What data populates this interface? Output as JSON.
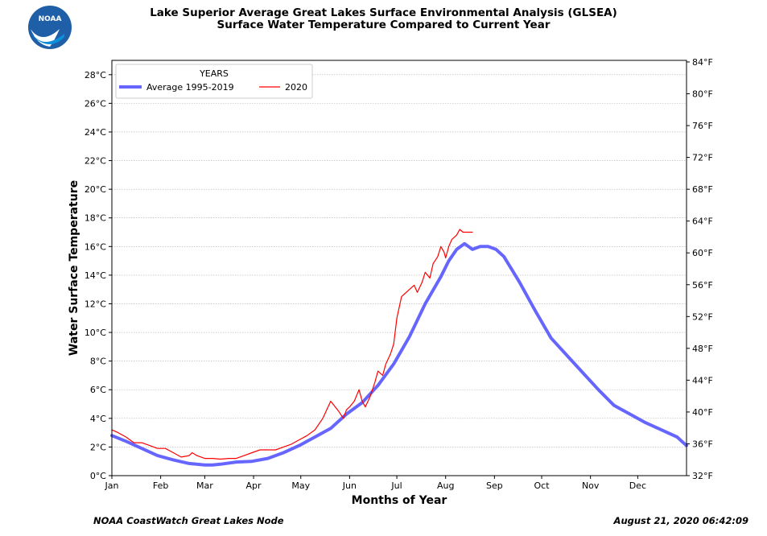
{
  "header": {
    "logo_text": "NOAA",
    "title_line1": "Lake Superior Average Great Lakes Surface Environmental Analysis (GLSEA)",
    "title_line2": "Surface Water Temperature Compared to Current Year"
  },
  "footer": {
    "source": "NOAA CoastWatch Great Lakes Node",
    "timestamp": "August 21, 2020 06:42:09"
  },
  "colors": {
    "average": "#6666ff",
    "current": "#ff0000",
    "grid": "#b0b0b0"
  },
  "chart_data": {
    "type": "line",
    "title": "Lake Superior Average Great Lakes Surface Environmental Analysis (GLSEA) Surface Water Temperature Compared to Current Year",
    "xlabel": "Months of Year",
    "ylabel": "Water Surface Temperature",
    "xlim": [
      1,
      366
    ],
    "ylim": [
      0,
      29
    ],
    "grid": true,
    "legend": {
      "title": "YEARS",
      "location": "top-left"
    },
    "month_ticks": [
      {
        "day": 1,
        "label": "Jan"
      },
      {
        "day": 32,
        "label": "Feb"
      },
      {
        "day": 60,
        "label": "Mar"
      },
      {
        "day": 91,
        "label": "Apr"
      },
      {
        "day": 121,
        "label": "May"
      },
      {
        "day": 152,
        "label": "Jun"
      },
      {
        "day": 182,
        "label": "Jul"
      },
      {
        "day": 213,
        "label": "Aug"
      },
      {
        "day": 244,
        "label": "Sep"
      },
      {
        "day": 274,
        "label": "Oct"
      },
      {
        "day": 305,
        "label": "Nov"
      },
      {
        "day": 335,
        "label": "Dec"
      }
    ],
    "y_ticks_c": [
      {
        "value": 0,
        "label": "0°C"
      },
      {
        "value": 2,
        "label": "2°C"
      },
      {
        "value": 4,
        "label": "4°C"
      },
      {
        "value": 6,
        "label": "6°C"
      },
      {
        "value": 8,
        "label": "8°C"
      },
      {
        "value": 10,
        "label": "10°C"
      },
      {
        "value": 12,
        "label": "12°C"
      },
      {
        "value": 14,
        "label": "14°C"
      },
      {
        "value": 16,
        "label": "16°C"
      },
      {
        "value": 18,
        "label": "18°C"
      },
      {
        "value": 20,
        "label": "20°C"
      },
      {
        "value": 22,
        "label": "22°C"
      },
      {
        "value": 24,
        "label": "24°C"
      },
      {
        "value": 26,
        "label": "26°C"
      },
      {
        "value": 28,
        "label": "28°C"
      }
    ],
    "y_ticks_f": [
      {
        "value": 32,
        "label": "32°F"
      },
      {
        "value": 36,
        "label": "36°F"
      },
      {
        "value": 40,
        "label": "40°F"
      },
      {
        "value": 44,
        "label": "44°F"
      },
      {
        "value": 48,
        "label": "48°F"
      },
      {
        "value": 52,
        "label": "52°F"
      },
      {
        "value": 56,
        "label": "56°F"
      },
      {
        "value": 60,
        "label": "60°F"
      },
      {
        "value": 64,
        "label": "64°F"
      },
      {
        "value": 68,
        "label": "68°F"
      },
      {
        "value": 72,
        "label": "72°F"
      },
      {
        "value": 76,
        "label": "76°F"
      },
      {
        "value": 80,
        "label": "80°F"
      },
      {
        "value": 84,
        "label": "84°F"
      }
    ],
    "series": [
      {
        "name": "Average 1995-2019",
        "x": [
          1,
          10,
          20,
          30,
          40,
          50,
          60,
          65,
          70,
          80,
          90,
          100,
          110,
          120,
          130,
          140,
          150,
          160,
          170,
          180,
          190,
          200,
          210,
          215,
          220,
          225,
          230,
          235,
          240,
          245,
          250,
          260,
          270,
          280,
          290,
          300,
          310,
          320,
          330,
          340,
          350,
          360,
          363,
          366
        ],
        "y": [
          2.8,
          2.4,
          1.9,
          1.4,
          1.1,
          0.85,
          0.75,
          0.75,
          0.8,
          0.95,
          1.0,
          1.2,
          1.6,
          2.1,
          2.7,
          3.3,
          4.3,
          5.1,
          6.3,
          7.8,
          9.7,
          12.0,
          13.9,
          15.0,
          15.8,
          16.2,
          15.8,
          16.0,
          16.0,
          15.8,
          15.3,
          13.5,
          11.5,
          9.6,
          8.4,
          7.2,
          6.0,
          4.9,
          4.3,
          3.7,
          3.2,
          2.7,
          2.4,
          2.1
        ]
      },
      {
        "name": "2020",
        "x": [
          1,
          5,
          10,
          15,
          20,
          25,
          30,
          35,
          40,
          45,
          50,
          52,
          55,
          60,
          65,
          70,
          75,
          80,
          85,
          90,
          95,
          100,
          105,
          110,
          115,
          120,
          125,
          130,
          135,
          140,
          145,
          148,
          150,
          152,
          155,
          158,
          160,
          162,
          165,
          168,
          170,
          173,
          175,
          178,
          180,
          182,
          185,
          190,
          193,
          195,
          198,
          200,
          203,
          205,
          208,
          210,
          212,
          213,
          215,
          217,
          220,
          222,
          224,
          226,
          228,
          230
        ],
        "y": [
          3.2,
          3.0,
          2.7,
          2.3,
          2.3,
          2.1,
          1.9,
          1.9,
          1.6,
          1.3,
          1.4,
          1.6,
          1.4,
          1.2,
          1.2,
          1.15,
          1.2,
          1.2,
          1.4,
          1.6,
          1.8,
          1.8,
          1.8,
          2.0,
          2.2,
          2.5,
          2.8,
          3.2,
          4.0,
          5.2,
          4.5,
          4.0,
          4.6,
          4.8,
          5.2,
          6.0,
          5.2,
          4.8,
          5.5,
          6.5,
          7.3,
          7.0,
          7.8,
          8.5,
          9.2,
          11.0,
          12.5,
          13.0,
          13.3,
          12.8,
          13.5,
          14.2,
          13.8,
          14.8,
          15.3,
          16.0,
          15.6,
          15.2,
          16.0,
          16.5,
          16.8,
          17.2,
          17.0,
          17.0,
          17.0,
          17.0
        ]
      }
    ]
  }
}
